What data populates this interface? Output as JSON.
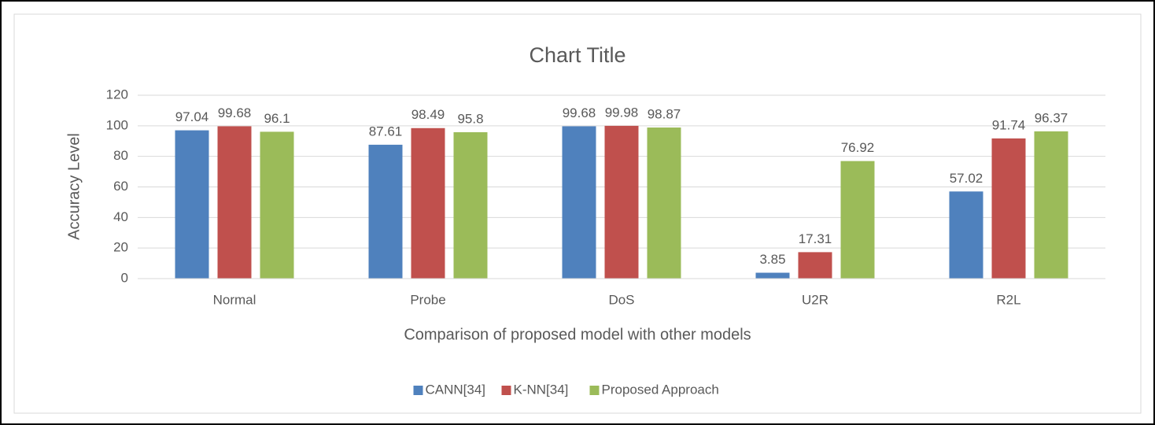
{
  "chart_data": {
    "type": "bar",
    "title": "Chart Title",
    "x_label": "Comparison of proposed model with other models",
    "y_label": "Accuracy Level",
    "categories": [
      "Normal",
      "Probe",
      "DoS",
      "U2R",
      "R2L"
    ],
    "series": [
      {
        "name": "CANN[34]",
        "color": "#4f81bd",
        "values": [
          97.04,
          87.61,
          99.68,
          3.85,
          57.02
        ]
      },
      {
        "name": "K-NN[34]",
        "color": "#c0504d",
        "values": [
          99.68,
          98.49,
          99.98,
          17.31,
          91.74
        ]
      },
      {
        "name": "Proposed Approach",
        "color": "#9bbb59",
        "values": [
          96.1,
          95.8,
          98.87,
          76.92,
          96.37
        ]
      }
    ],
    "ylim": [
      0,
      120
    ],
    "yticks": [
      0,
      20,
      40,
      60,
      80,
      100,
      120
    ],
    "grid": true,
    "legend": "bottom"
  }
}
